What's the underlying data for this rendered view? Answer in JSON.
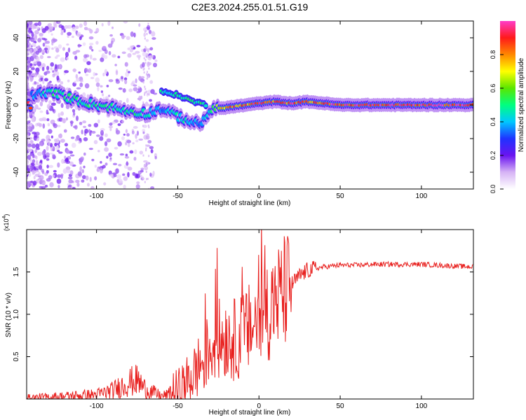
{
  "title": "C2E3.2024.255.01.51.G19",
  "chart_data": [
    {
      "type": "heatmap",
      "xlabel": "Height of straight line (km)",
      "ylabel": "Frequency (Hz)",
      "xlim": [
        -143,
        132
      ],
      "ylim": [
        -50,
        50
      ],
      "xticks": [
        -100,
        -50,
        0,
        50,
        100
      ],
      "yticks": [
        -40,
        -20,
        0,
        20,
        40
      ],
      "colorbar": {
        "label": "Normalized spectral amplitude",
        "range": [
          0,
          1
        ],
        "ticks": [
          "0.0",
          "0.2",
          "0.4",
          "0.6",
          "0.8"
        ]
      },
      "ridge": [
        {
          "x": -140,
          "y": 6,
          "a": 0.35
        },
        {
          "x": -132,
          "y": 7,
          "a": 0.45
        },
        {
          "x": -124,
          "y": 7,
          "a": 0.55
        },
        {
          "x": -116,
          "y": 4,
          "a": 0.5
        },
        {
          "x": -108,
          "y": 2,
          "a": 0.5
        },
        {
          "x": -100,
          "y": 0,
          "a": 0.5
        },
        {
          "x": -92,
          "y": -1,
          "a": 0.5
        },
        {
          "x": -84,
          "y": -3,
          "a": 0.45
        },
        {
          "x": -76,
          "y": -4,
          "a": 0.5
        },
        {
          "x": -68,
          "y": -5,
          "a": 0.45
        },
        {
          "x": -60,
          "y": -2,
          "a": 0.35
        },
        {
          "x": -52,
          "y": -6,
          "a": 0.45
        },
        {
          "x": -44,
          "y": -9,
          "a": 0.45
        },
        {
          "x": -36,
          "y": -12,
          "a": 0.35
        },
        {
          "x": -30,
          "y": -3,
          "a": 0.5
        },
        {
          "x": -24,
          "y": -2,
          "a": 0.75
        },
        {
          "x": -16,
          "y": -1,
          "a": 0.85
        },
        {
          "x": -8,
          "y": 0,
          "a": 0.85
        },
        {
          "x": 0,
          "y": 1,
          "a": 0.9
        },
        {
          "x": 10,
          "y": 2,
          "a": 0.85
        },
        {
          "x": 20,
          "y": 1,
          "a": 0.9
        },
        {
          "x": 30,
          "y": 2,
          "a": 0.85
        },
        {
          "x": 40,
          "y": 1,
          "a": 0.9
        },
        {
          "x": 50,
          "y": 0,
          "a": 0.95
        },
        {
          "x": 70,
          "y": 0,
          "a": 0.95
        },
        {
          "x": 90,
          "y": 0,
          "a": 0.95
        },
        {
          "x": 110,
          "y": 0,
          "a": 0.95
        },
        {
          "x": 131,
          "y": 0,
          "a": 0.95
        }
      ],
      "upper_branch": [
        {
          "x": -60,
          "y": 8
        },
        {
          "x": -50,
          "y": 6
        },
        {
          "x": -40,
          "y": 2
        },
        {
          "x": -32,
          "y": 0
        }
      ]
    },
    {
      "type": "line",
      "xlabel": "Height of straight line (km)",
      "ylabel": "SNR (10 * v/v)",
      "y_multiplier": "(x10^4)",
      "xlim": [
        -143,
        132
      ],
      "ylim": [
        0,
        2.0
      ],
      "xticks": [
        -100,
        -50,
        0,
        50,
        100
      ],
      "yticks": [
        0.5,
        1.0,
        1.5
      ],
      "color": "#e8201e",
      "series": [
        {
          "x": [
            -143,
            -120,
            -100,
            -90,
            -80,
            -75,
            -70,
            -60,
            -50,
            -45,
            -40,
            -35,
            -30,
            -25,
            -20,
            -15,
            -10,
            -5,
            0,
            5,
            10,
            15,
            20,
            25,
            30,
            40,
            50,
            60,
            70,
            80,
            90,
            100,
            110,
            120,
            132
          ],
          "values": [
            0.01,
            0.03,
            0.05,
            0.1,
            0.2,
            0.22,
            0.12,
            0.03,
            0.08,
            0.18,
            0.3,
            0.45,
            0.6,
            0.7,
            0.75,
            0.7,
            0.75,
            0.85,
            0.95,
            1.05,
            1.15,
            1.25,
            1.35,
            1.45,
            1.52,
            1.56,
            1.58,
            1.58,
            1.59,
            1.59,
            1.59,
            1.59,
            1.58,
            1.57,
            1.56
          ]
        }
      ]
    }
  ]
}
